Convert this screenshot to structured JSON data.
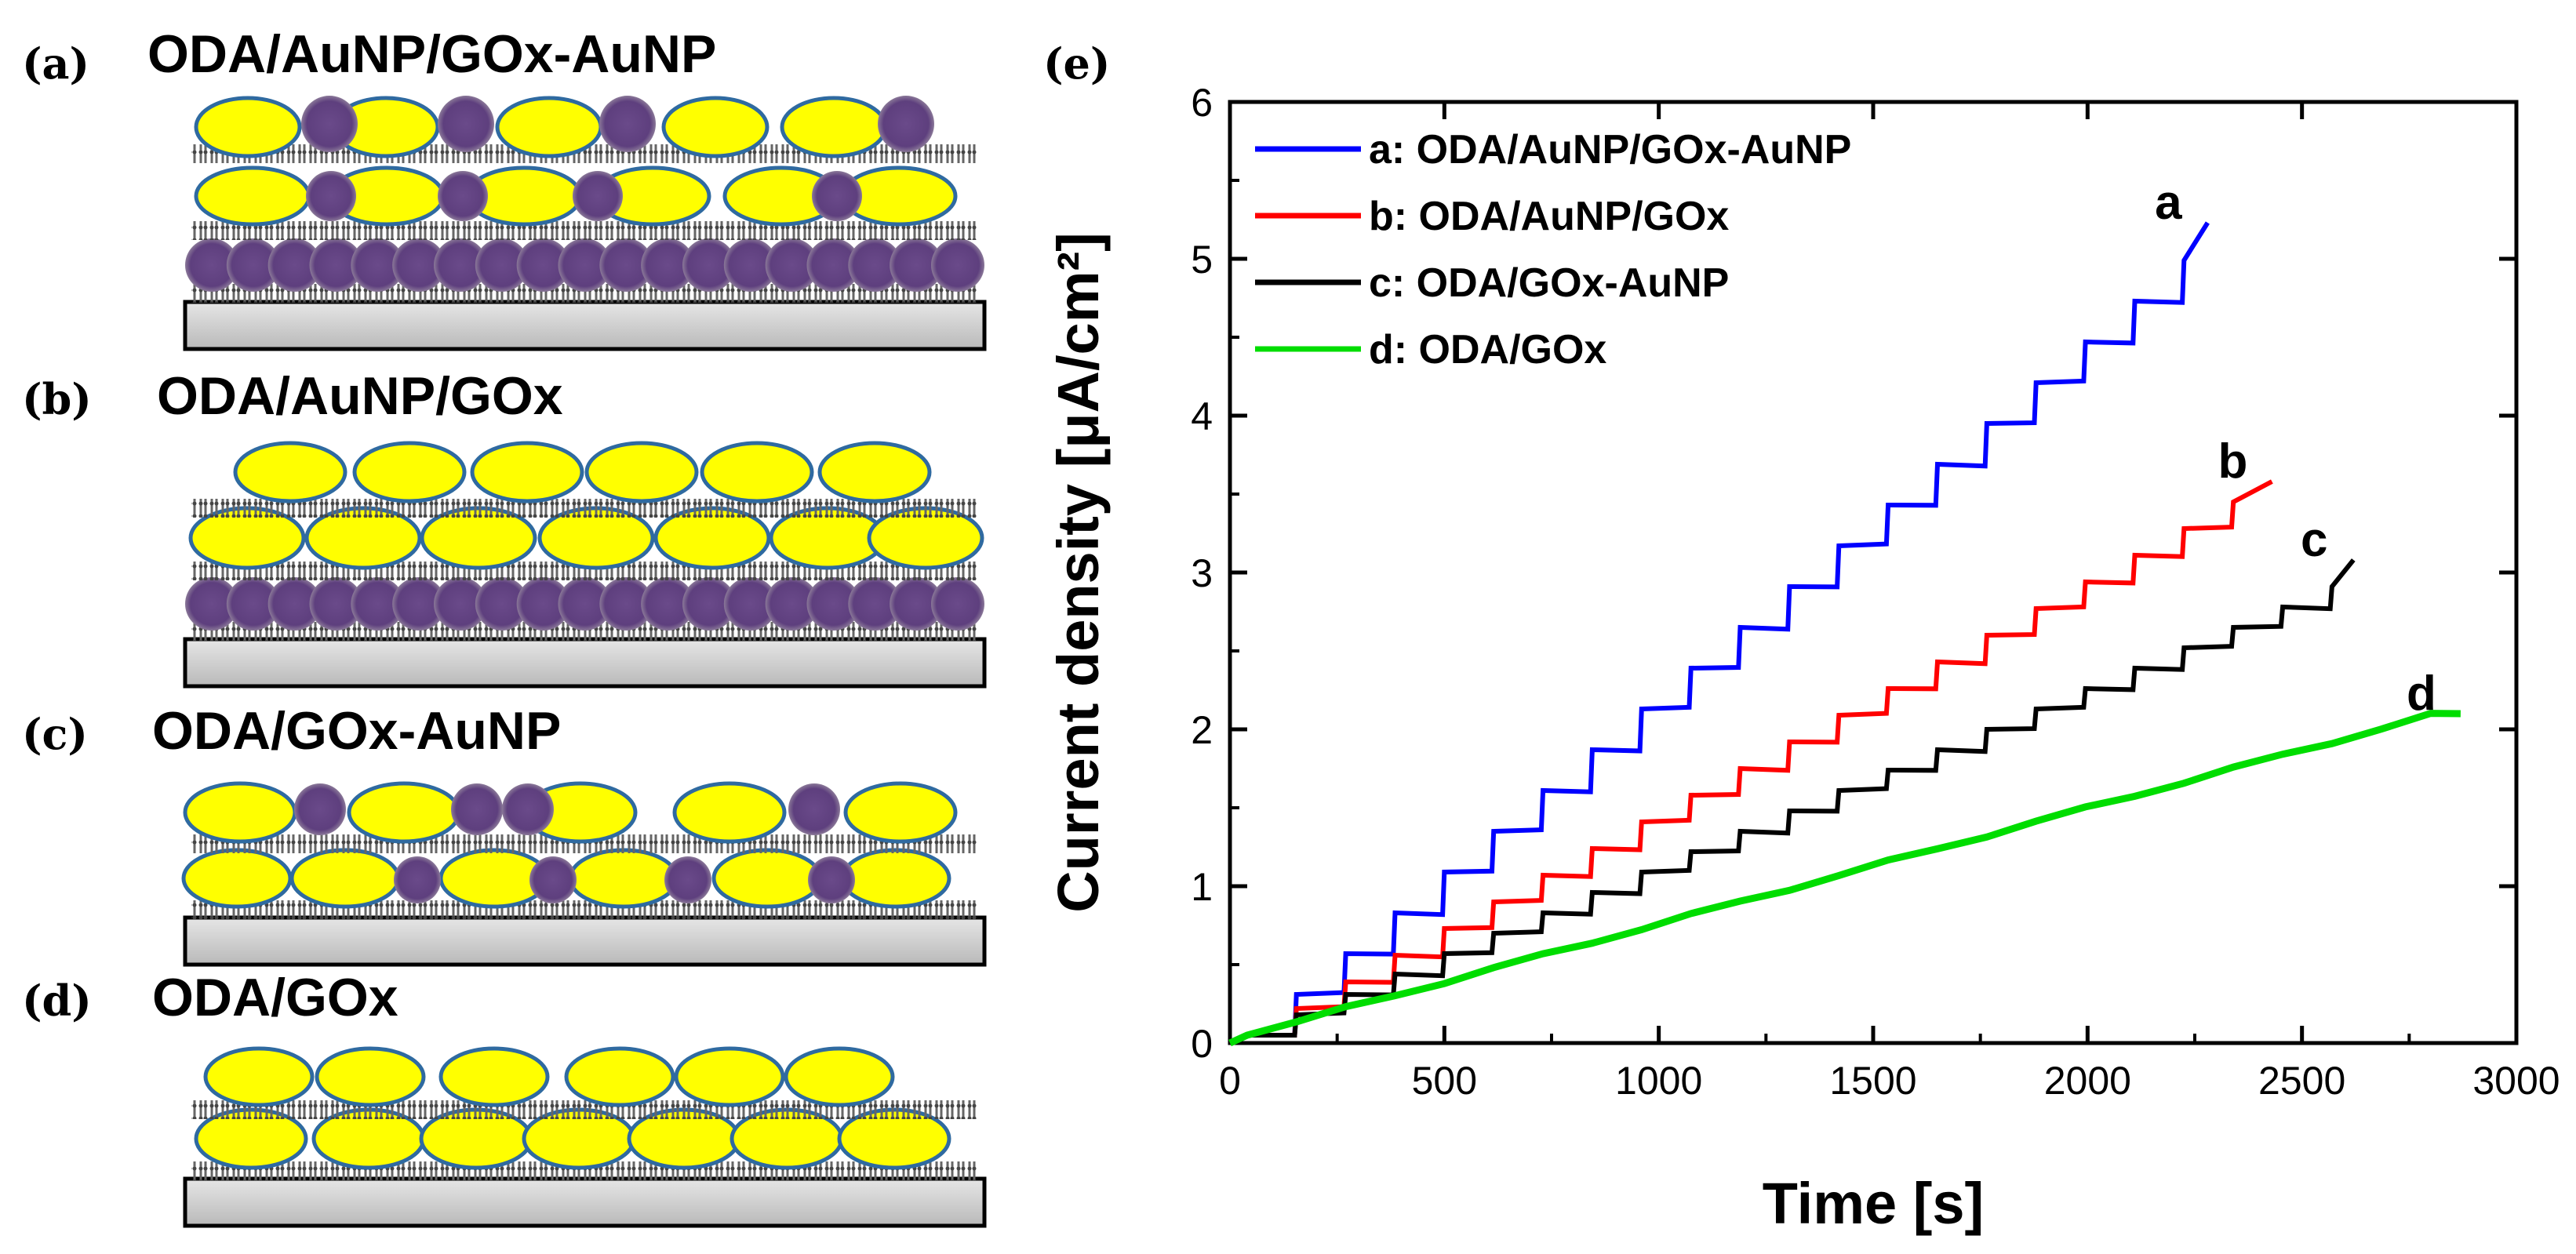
{
  "figure": {
    "panels": [
      {
        "letter": "(a)",
        "title": "ODA/AuNP/GOx-AuNP"
      },
      {
        "letter": "(b)",
        "title": "ODA/AuNP/GOx"
      },
      {
        "letter": "(c)",
        "title": "ODA/GOx-AuNP"
      },
      {
        "letter": "(d)",
        "title": "ODA/GOx"
      }
    ],
    "chart_panel_letter": "(e)"
  },
  "colors": {
    "gold_np": "#ffff00",
    "gold_outline": "#2f6aa0",
    "aunp_purple": "#5e3f7e",
    "substrate": "#c8c8c8",
    "series_a": "#0000ff",
    "series_b": "#ff0000",
    "series_c": "#000000",
    "series_d": "#00dd00"
  },
  "chart_data": {
    "type": "line",
    "title": "",
    "xlabel": "Time [s]",
    "ylabel": "Current density [μA/cm²]",
    "xlim": [
      0,
      3000
    ],
    "ylim": [
      0,
      6
    ],
    "xticks": [
      "0",
      "500",
      "1000",
      "1500",
      "2000",
      "2500",
      "3000"
    ],
    "yticks": [
      "0",
      "1",
      "2",
      "3",
      "4",
      "5",
      "6"
    ],
    "legend_position": "top-left",
    "series": [
      {
        "id": "a",
        "name": "a: ODA/AuNP/GOx-AuNP",
        "label": "a",
        "color": "#0000ff",
        "start_time": 40,
        "end_time": 2280,
        "step_time": 115,
        "step_height": 0.26,
        "final_value": 5.23,
        "stepwise": true
      },
      {
        "id": "b",
        "name": "b: ODA/AuNP/GOx",
        "label": "b",
        "color": "#ff0000",
        "start_time": 40,
        "end_time": 2430,
        "step_time": 115,
        "step_height": 0.17,
        "final_value": 3.58,
        "stepwise": true
      },
      {
        "id": "c",
        "name": "c: ODA/GOx-AuNP",
        "label": "c",
        "color": "#000000",
        "start_time": 40,
        "end_time": 2620,
        "step_time": 115,
        "step_height": 0.13,
        "final_value": 3.08,
        "stepwise": true
      },
      {
        "id": "d",
        "name": "d: ODA/GOx",
        "label": "d",
        "color": "#00dd00",
        "start_time": 40,
        "end_time": 2870,
        "step_time": 115,
        "step_height": 0.085,
        "final_value": 2.1,
        "stepwise": false
      }
    ]
  }
}
